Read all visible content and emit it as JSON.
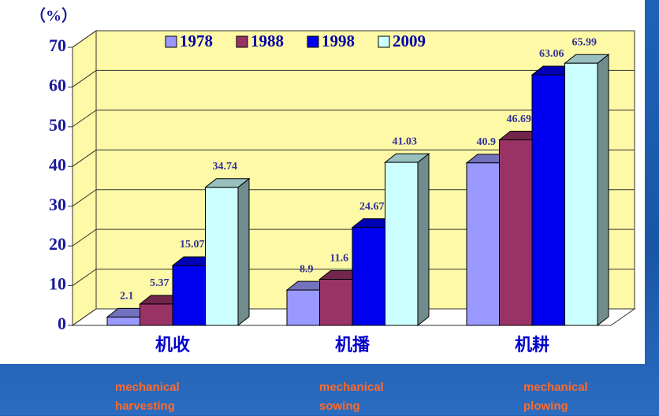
{
  "chart_data": {
    "type": "bar",
    "y_label": "（%）",
    "categories": [
      "机收",
      "机播",
      "机耕"
    ],
    "category_notes": [
      "mechanical harvesting",
      "mechanical sowing",
      "mechanical plowing"
    ],
    "series": [
      {
        "name": "1978",
        "color": "#9999ff",
        "values": [
          2.1,
          8.9,
          40.9
        ]
      },
      {
        "name": "1988",
        "color": "#993366",
        "values": [
          5.37,
          11.6,
          46.69
        ]
      },
      {
        "name": "1998",
        "color": "#0000f0",
        "values": [
          15.07,
          24.67,
          63.06
        ]
      },
      {
        "name": "2009",
        "color": "#ccffff",
        "values": [
          34.74,
          41.03,
          65.99
        ]
      }
    ],
    "ylim": [
      0,
      70
    ],
    "yticks": [
      0,
      10,
      20,
      30,
      40,
      50,
      60,
      70
    ],
    "grid": true,
    "legend": "top",
    "wall_color": "#fdf9a6"
  }
}
